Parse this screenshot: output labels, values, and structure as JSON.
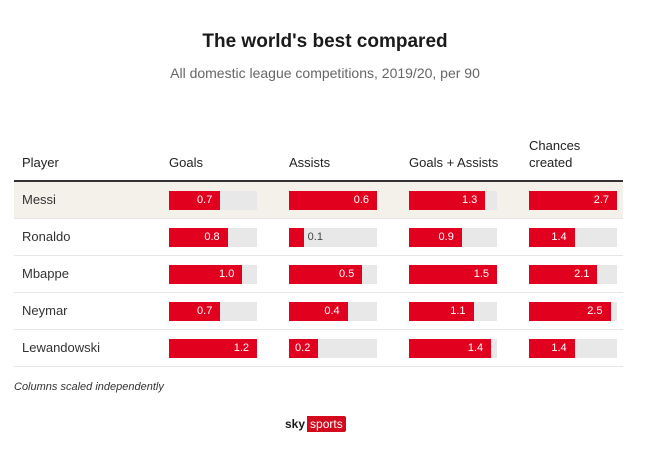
{
  "title": "The world's best compared",
  "subtitle": "All domestic league competitions, 2019/20, per 90",
  "note": "Columns scaled independently",
  "logo": {
    "sky": "sky",
    "sports": "sports"
  },
  "colors": {
    "bar": "#e1001e",
    "track": "#e8e8e8",
    "highlight_row": "#f4f0ea"
  },
  "chart_data": {
    "type": "table",
    "columns": [
      {
        "key": "player",
        "label": "Player"
      },
      {
        "key": "goals",
        "label": "Goals",
        "max": 1.2
      },
      {
        "key": "assists",
        "label": "Assists",
        "max": 0.6
      },
      {
        "key": "goals_assists",
        "label": "Goals + Assists",
        "max": 1.5
      },
      {
        "key": "chances",
        "label": "Chances created",
        "max": 2.7
      }
    ],
    "rows": [
      {
        "player": "Messi",
        "goals": 0.7,
        "assists": 0.6,
        "goals_assists": 1.3,
        "chances": 2.7,
        "highlight": true
      },
      {
        "player": "Ronaldo",
        "goals": 0.8,
        "assists": 0.1,
        "goals_assists": 0.9,
        "chances": 1.4
      },
      {
        "player": "Mbappe",
        "goals": 1.0,
        "assists": 0.5,
        "goals_assists": 1.5,
        "chances": 2.1
      },
      {
        "player": "Neymar",
        "goals": 0.7,
        "assists": 0.4,
        "goals_assists": 1.1,
        "chances": 2.5
      },
      {
        "player": "Lewandowski",
        "goals": 1.2,
        "assists": 0.2,
        "goals_assists": 1.4,
        "chances": 1.4
      }
    ]
  }
}
